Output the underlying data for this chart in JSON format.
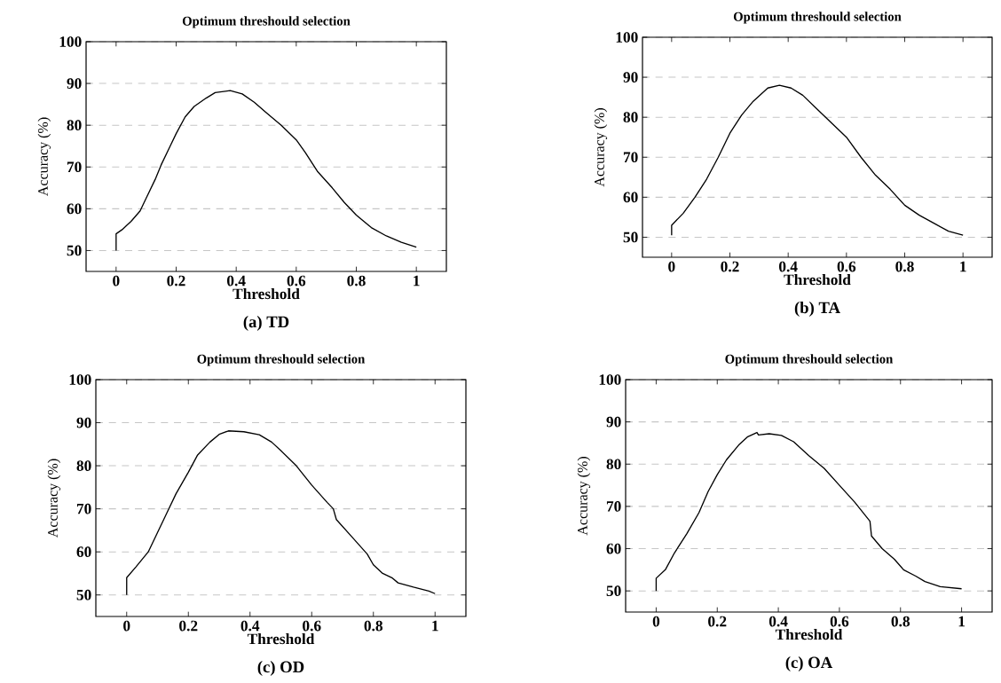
{
  "chart_data": [
    {
      "type": "line",
      "title": "Optimum threshould selection",
      "xlabel": "Threshold",
      "ylabel": "Accuracy (%)",
      "annotations": [
        "(a) TD"
      ],
      "color": "#000000",
      "grid": "y",
      "xlim": [
        -0.1,
        1.1
      ],
      "ylim": [
        45,
        100
      ],
      "xticks": [
        0,
        0.2,
        0.4,
        0.6,
        0.8,
        1
      ],
      "yticks": [
        50,
        60,
        70,
        80,
        90,
        100
      ],
      "x": [
        0,
        0,
        0.02,
        0.05,
        0.08,
        0.1,
        0.13,
        0.15,
        0.18,
        0.2,
        0.23,
        0.26,
        0.3,
        0.33,
        0.38,
        0.42,
        0.46,
        0.5,
        0.55,
        0.6,
        0.63,
        0.67,
        0.72,
        0.76,
        0.8,
        0.85,
        0.9,
        0.95,
        1.0
      ],
      "values": [
        50,
        54,
        55,
        57,
        59.5,
        62.5,
        67,
        70.5,
        75,
        78,
        82,
        84.5,
        86.5,
        87.8,
        88.3,
        87.5,
        85.5,
        83,
        80,
        76.5,
        73.5,
        69,
        65,
        61.5,
        58.5,
        55.5,
        53.5,
        52,
        50.8
      ]
    },
    {
      "type": "line",
      "title": "Optimum threshould selection",
      "xlabel": "Threshold",
      "ylabel": "Accuracy (%)",
      "annotations": [
        "(b) TA"
      ],
      "color": "#000000",
      "grid": "y",
      "xlim": [
        -0.1,
        1.1
      ],
      "ylim": [
        45,
        100
      ],
      "xticks": [
        0,
        0.2,
        0.4,
        0.6,
        0.8,
        1
      ],
      "yticks": [
        50,
        60,
        70,
        80,
        90,
        100
      ],
      "x": [
        0,
        0,
        0.04,
        0.08,
        0.12,
        0.16,
        0.2,
        0.24,
        0.28,
        0.33,
        0.37,
        0.41,
        0.45,
        0.5,
        0.55,
        0.6,
        0.65,
        0.7,
        0.75,
        0.8,
        0.85,
        0.9,
        0.95,
        1.0
      ],
      "values": [
        50.5,
        53,
        56,
        60,
        64.5,
        70,
        76,
        80.5,
        84,
        87.3,
        88,
        87.3,
        85.5,
        82,
        78.5,
        75,
        70,
        65.5,
        62,
        58,
        55.5,
        53.5,
        51.5,
        50.5
      ]
    },
    {
      "type": "line",
      "title": "Optimum threshould selection",
      "xlabel": "Threshold",
      "ylabel": "Accuracy (%)",
      "annotations": [
        "(c) OD"
      ],
      "color": "#000000",
      "grid": "y",
      "xlim": [
        -0.1,
        1.1
      ],
      "ylim": [
        45,
        100
      ],
      "xticks": [
        0,
        0.2,
        0.4,
        0.6,
        0.8,
        1
      ],
      "yticks": [
        50,
        60,
        70,
        80,
        90,
        100
      ],
      "x": [
        0,
        0,
        0.03,
        0.07,
        0.1,
        0.13,
        0.16,
        0.2,
        0.23,
        0.27,
        0.3,
        0.33,
        0.38,
        0.43,
        0.47,
        0.5,
        0.55,
        0.6,
        0.65,
        0.67,
        0.68,
        0.73,
        0.78,
        0.8,
        0.83,
        0.86,
        0.88,
        0.93,
        0.98,
        1.0
      ],
      "values": [
        50,
        54,
        56.5,
        60,
        64.5,
        69,
        73.5,
        78.5,
        82.5,
        85.5,
        87.3,
        88.1,
        87.9,
        87.2,
        85.5,
        83.5,
        80,
        75.5,
        71.5,
        70,
        67.5,
        63.5,
        59.5,
        57,
        55,
        54,
        52.8,
        51.8,
        50.9,
        50.3
      ]
    },
    {
      "type": "line",
      "title": "Optimum threshould selection",
      "xlabel": "Threshold",
      "ylabel": "Accuracy (%)",
      "annotations": [
        "(c) OA"
      ],
      "color": "#000000",
      "grid": "y",
      "xlim": [
        -0.1,
        1.1
      ],
      "ylim": [
        45,
        100
      ],
      "xticks": [
        0,
        0.2,
        0.4,
        0.6,
        0.8,
        1
      ],
      "yticks": [
        50,
        60,
        70,
        80,
        90,
        100
      ],
      "x": [
        0,
        0,
        0.03,
        0.06,
        0.1,
        0.14,
        0.17,
        0.2,
        0.23,
        0.27,
        0.3,
        0.33,
        0.335,
        0.37,
        0.41,
        0.45,
        0.5,
        0.55,
        0.6,
        0.65,
        0.7,
        0.705,
        0.74,
        0.78,
        0.81,
        0.85,
        0.88,
        0.93,
        1.0
      ],
      "values": [
        50,
        53,
        55,
        59,
        63.5,
        68.5,
        73.5,
        77.5,
        81,
        84.5,
        86.5,
        87.5,
        86.9,
        87.2,
        86.8,
        85.3,
        82,
        79,
        75,
        71,
        66.5,
        63,
        60,
        57.5,
        55,
        53.5,
        52.2,
        51,
        50.5
      ]
    }
  ]
}
